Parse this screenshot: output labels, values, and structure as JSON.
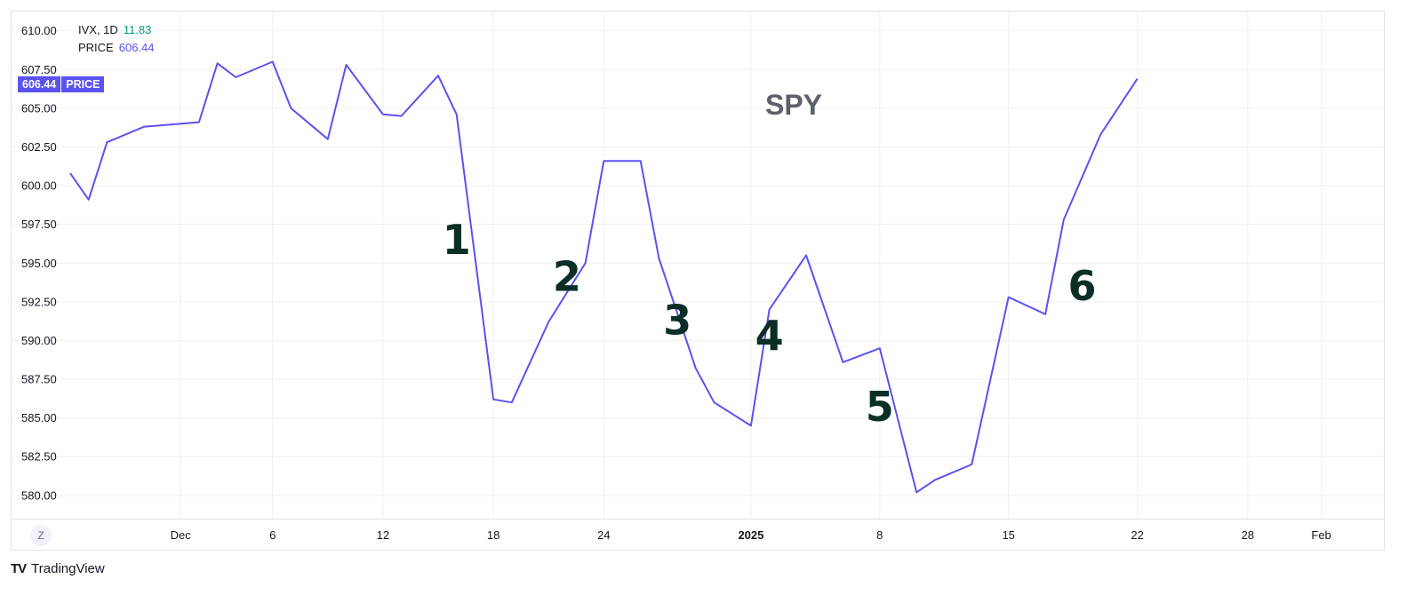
{
  "legend": {
    "series1_name": "IVX, 1D",
    "series1_value": "11.83",
    "series2_name": "PRICE",
    "series2_value": "606.44"
  },
  "price_tag": {
    "value": "606.44",
    "label": "PRICE"
  },
  "watermark": "SPY",
  "zoom_button": "Z",
  "brand": {
    "mark": "TV",
    "name": "TradingView"
  },
  "colors": {
    "line": "#5b52f0",
    "annotation": "#0b2e27",
    "watermark": "#5d606b",
    "grid": "#f0f0f3",
    "axis_text": "#131722"
  },
  "chart_data": {
    "type": "line",
    "title": "SPY",
    "ylim": [
      578.5,
      611.3
    ],
    "y_ticks": [
      "610.00",
      "607.50",
      "605.00",
      "602.50",
      "600.00",
      "597.50",
      "595.00",
      "592.50",
      "590.00",
      "587.50",
      "585.00",
      "582.50",
      "580.00"
    ],
    "y_tick_values": [
      610,
      607.5,
      605,
      602.5,
      600,
      597.5,
      595,
      592.5,
      590,
      587.5,
      585,
      582.5,
      580
    ],
    "x_domain": [
      "2024-11-25",
      "2025-02-03"
    ],
    "x_ticks": [
      {
        "date": "2024-12-01",
        "label": "Dec",
        "bold": false
      },
      {
        "date": "2024-12-06",
        "label": "6",
        "bold": false
      },
      {
        "date": "2024-12-12",
        "label": "12",
        "bold": false
      },
      {
        "date": "2024-12-18",
        "label": "18",
        "bold": false
      },
      {
        "date": "2024-12-24",
        "label": "24",
        "bold": false
      },
      {
        "date": "2025-01-01",
        "label": "2025",
        "bold": true
      },
      {
        "date": "2025-01-08",
        "label": "8",
        "bold": false
      },
      {
        "date": "2025-01-15",
        "label": "15",
        "bold": false
      },
      {
        "date": "2025-01-22",
        "label": "22",
        "bold": false
      },
      {
        "date": "2025-01-28",
        "label": "28",
        "bold": false
      },
      {
        "date": "2025-02-01",
        "label": "Feb",
        "bold": false
      }
    ],
    "series": [
      {
        "name": "PRICE",
        "points": [
          [
            "2024-11-25",
            600.8
          ],
          [
            "2024-11-26",
            599.1
          ],
          [
            "2024-11-27",
            602.8
          ],
          [
            "2024-11-29",
            603.8
          ],
          [
            "2024-12-02",
            604.1
          ],
          [
            "2024-12-03",
            607.9
          ],
          [
            "2024-12-04",
            607.0
          ],
          [
            "2024-12-06",
            608.0
          ],
          [
            "2024-12-07",
            605.0
          ],
          [
            "2024-12-09",
            603.0
          ],
          [
            "2024-12-10",
            607.8
          ],
          [
            "2024-12-12",
            604.6
          ],
          [
            "2024-12-13",
            604.5
          ],
          [
            "2024-12-15",
            607.1
          ],
          [
            "2024-12-16",
            604.6
          ],
          [
            "2024-12-18",
            586.2
          ],
          [
            "2024-12-19",
            586.0
          ],
          [
            "2024-12-21",
            591.2
          ],
          [
            "2024-12-23",
            595.0
          ],
          [
            "2024-12-24",
            601.6
          ],
          [
            "2024-12-26",
            601.6
          ],
          [
            "2024-12-27",
            595.3
          ],
          [
            "2024-12-29",
            588.2
          ],
          [
            "2024-12-30",
            586.0
          ],
          [
            "2025-01-01",
            584.5
          ],
          [
            "2025-01-02",
            592.0
          ],
          [
            "2025-01-04",
            595.5
          ],
          [
            "2025-01-06",
            588.6
          ],
          [
            "2025-01-08",
            589.5
          ],
          [
            "2025-01-10",
            580.2
          ],
          [
            "2025-01-11",
            581.0
          ],
          [
            "2025-01-13",
            582.0
          ],
          [
            "2025-01-15",
            592.8
          ],
          [
            "2025-01-17",
            591.7
          ],
          [
            "2025-01-18",
            597.8
          ],
          [
            "2025-01-20",
            603.3
          ],
          [
            "2025-01-22",
            606.9
          ]
        ]
      }
    ],
    "annotations": [
      {
        "text": "1",
        "date": "2024-12-16",
        "y": 595.6
      },
      {
        "text": "2",
        "date": "2024-12-22",
        "y": 593.2
      },
      {
        "text": "3",
        "date": "2024-12-28",
        "y": 590.4
      },
      {
        "text": "4",
        "date": "2025-01-02",
        "y": 589.4
      },
      {
        "text": "5",
        "date": "2025-01-08",
        "y": 584.8
      },
      {
        "text": "6",
        "date": "2025-01-19",
        "y": 592.6
      }
    ],
    "grid": true
  }
}
